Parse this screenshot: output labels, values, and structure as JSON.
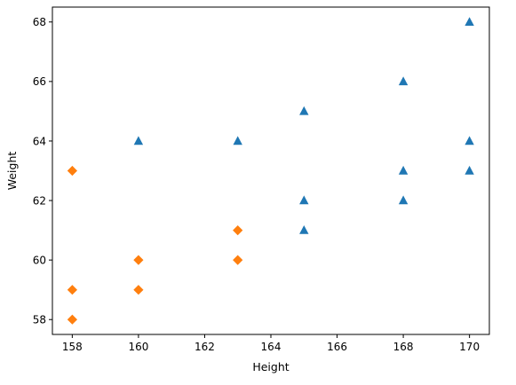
{
  "chart_data": {
    "type": "scatter",
    "title": "",
    "xlabel": "Height",
    "ylabel": "Weight",
    "xlim": [
      157.4,
      170.6
    ],
    "ylim": [
      57.5,
      68.5
    ],
    "xticks": [
      158,
      160,
      162,
      164,
      166,
      168,
      170
    ],
    "yticks": [
      58,
      60,
      62,
      64,
      66,
      68
    ],
    "grid": false,
    "legend": "none",
    "series": [
      {
        "marker": "triangle",
        "color": "#1f77b4",
        "points": [
          [
            160,
            64
          ],
          [
            163,
            64
          ],
          [
            165,
            65
          ],
          [
            165,
            62
          ],
          [
            165,
            61
          ],
          [
            168,
            66
          ],
          [
            168,
            63
          ],
          [
            168,
            62
          ],
          [
            170,
            68
          ],
          [
            170,
            64
          ],
          [
            170,
            63
          ]
        ]
      },
      {
        "marker": "diamond",
        "color": "#ff7f0e",
        "points": [
          [
            158,
            63
          ],
          [
            158,
            59
          ],
          [
            158,
            58
          ],
          [
            160,
            60
          ],
          [
            160,
            59
          ],
          [
            163,
            61
          ],
          [
            163,
            60
          ]
        ]
      }
    ]
  }
}
